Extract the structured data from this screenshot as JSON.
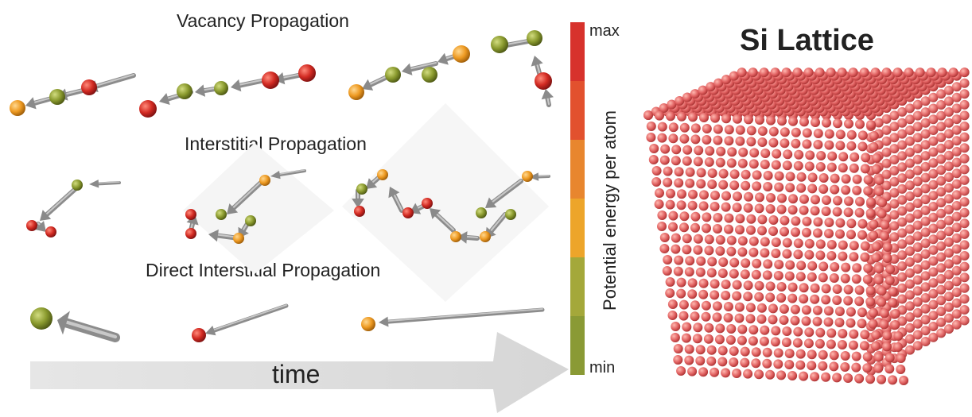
{
  "titles": {
    "vacancy": "Vacancy Propagation",
    "interstitial": "Interstitial Propagation",
    "direct": "Direct Interstitial Propagation",
    "lattice": "Si Lattice",
    "time": "time"
  },
  "colorbar": {
    "max_label": "max",
    "min_label": "min",
    "axis_label": "Potential energy per atom",
    "colors": [
      "#d7322c",
      "#e2512e",
      "#e8862e",
      "#eda52a",
      "#a4a83a",
      "#8a9a35"
    ]
  },
  "atom_colors": {
    "red": "#d22a22",
    "orange": "#ee9a22",
    "olive": "#8a9a2e",
    "lattice": "#e06060"
  }
}
